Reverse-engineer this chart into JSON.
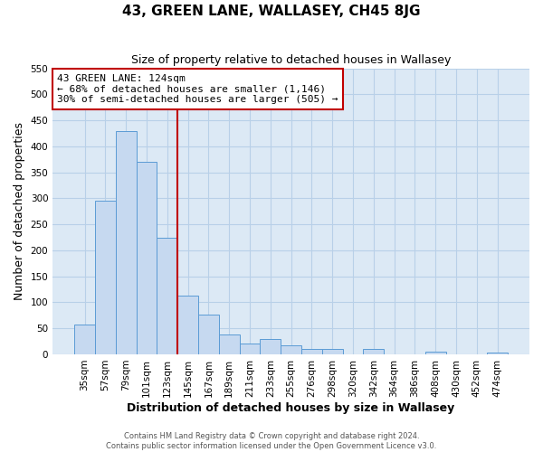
{
  "title": "43, GREEN LANE, WALLASEY, CH45 8JG",
  "subtitle": "Size of property relative to detached houses in Wallasey",
  "xlabel": "Distribution of detached houses by size in Wallasey",
  "ylabel": "Number of detached properties",
  "footer_line1": "Contains HM Land Registry data © Crown copyright and database right 2024.",
  "footer_line2": "Contains public sector information licensed under the Open Government Licence v3.0.",
  "bar_labels": [
    "35sqm",
    "57sqm",
    "79sqm",
    "101sqm",
    "123sqm",
    "145sqm",
    "167sqm",
    "189sqm",
    "211sqm",
    "233sqm",
    "255sqm",
    "276sqm",
    "298sqm",
    "320sqm",
    "342sqm",
    "364sqm",
    "386sqm",
    "408sqm",
    "430sqm",
    "452sqm",
    "474sqm"
  ],
  "bar_values": [
    57,
    295,
    430,
    370,
    225,
    113,
    76,
    38,
    21,
    29,
    17,
    10,
    11,
    0,
    10,
    0,
    0,
    5,
    0,
    0,
    4
  ],
  "bar_color": "#c6d9f0",
  "bar_edge_color": "#5b9bd5",
  "vline_color": "#c00000",
  "vline_x_index": 4.5,
  "annotation_title": "43 GREEN LANE: 124sqm",
  "annotation_line1": "← 68% of detached houses are smaller (1,146)",
  "annotation_line2": "30% of semi-detached houses are larger (505) →",
  "annotation_box_color": "#c00000",
  "ylim": [
    0,
    550
  ],
  "yticks": [
    0,
    50,
    100,
    150,
    200,
    250,
    300,
    350,
    400,
    450,
    500,
    550
  ],
  "plot_bg_color": "#dce9f5",
  "fig_bg_color": "#ffffff",
  "grid_color": "#b8d0e8",
  "title_fontsize": 11,
  "subtitle_fontsize": 9,
  "axis_label_fontsize": 9,
  "tick_fontsize": 7.5,
  "annotation_fontsize": 8,
  "footer_fontsize": 6
}
